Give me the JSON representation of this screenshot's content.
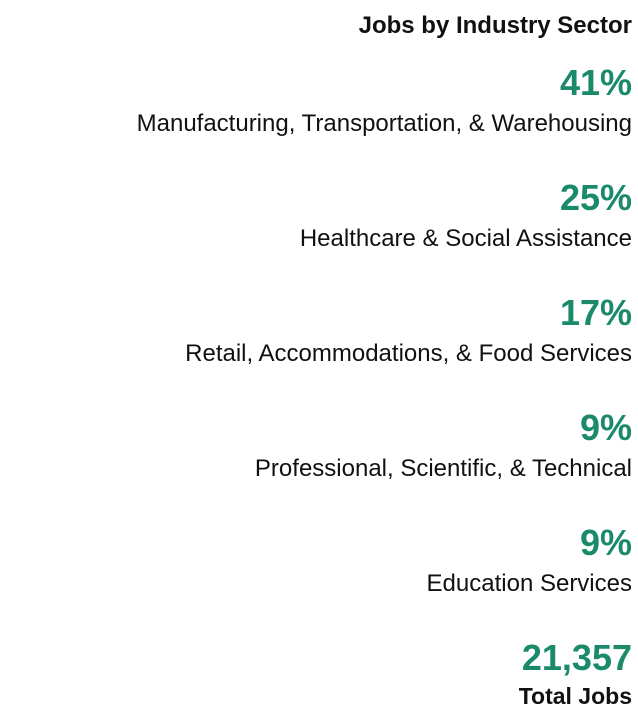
{
  "title": "Jobs by Industry Sector",
  "sectors": [
    {
      "percent": "41%",
      "name": "Manufacturing, Transportation, & Warehousing"
    },
    {
      "percent": "25%",
      "name": "Healthcare & Social Assistance"
    },
    {
      "percent": "17%",
      "name": "Retail, Accommodations, & Food Services"
    },
    {
      "percent": "9%",
      "name": "Professional, Scientific, & Technical"
    },
    {
      "percent": "9%",
      "name": "Education Services"
    }
  ],
  "total": {
    "value": "21,357",
    "label": "Total Jobs"
  }
}
